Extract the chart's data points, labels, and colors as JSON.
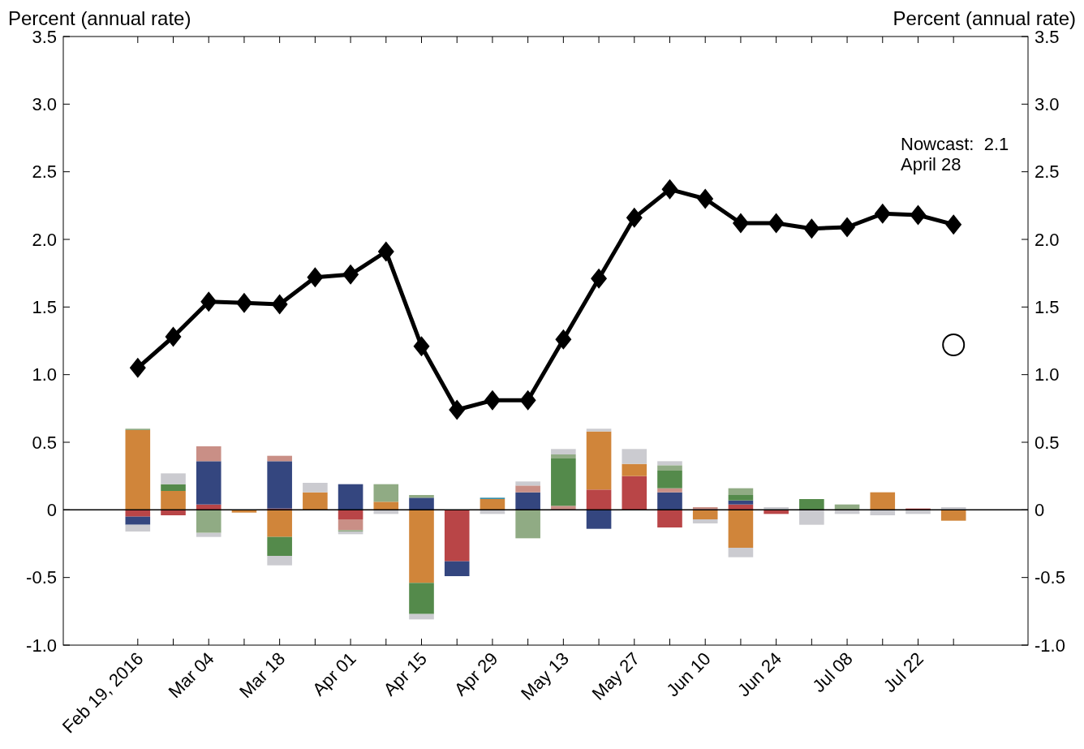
{
  "chart_data": {
    "type": "bar",
    "stacked": true,
    "ylabel": "Percent (annual rate)",
    "y2label": "Percent (annual rate)",
    "categories": [
      "Feb 19, 2016",
      null,
      "Mar 04",
      null,
      "Mar 18",
      null,
      "Apr 01",
      null,
      "Apr 15",
      null,
      "Apr 29",
      null,
      "May 13",
      null,
      "May 27",
      null,
      "Jun 10",
      null,
      "Jun 24",
      null,
      "Jul 08",
      null,
      "Jul 22",
      null
    ],
    "ylim": [
      -1,
      3.5
    ],
    "yticks": [
      {
        "value": -1,
        "label": "-1.0"
      },
      -0.5,
      0,
      0.5,
      {
        "value": 1,
        "label": "1.0"
      },
      1.5,
      {
        "value": 2,
        "label": "2.0"
      },
      2.5,
      {
        "value": 3,
        "label": "3.0"
      },
      3.5
    ],
    "y2lim": [
      -1,
      3.5
    ],
    "y2ticks": [
      {
        "value": -1,
        "label": "-1.0"
      },
      -0.5,
      0,
      0.5,
      {
        "value": 1,
        "label": "1.0"
      },
      1.5,
      {
        "value": 2,
        "label": "2.0"
      },
      2.5,
      {
        "value": 3,
        "label": "3.0"
      },
      3.5
    ],
    "ref_lines": [
      {
        "axis": "y",
        "value": 0,
        "color": "#000000"
      }
    ],
    "annotations": [
      "Nowcast:  2.1",
      "April 28"
    ],
    "series": [
      {
        "color": "#b94547",
        "values": [
          -0.05,
          -0.04,
          0.04,
          null,
          0.01,
          null,
          -0.07,
          null,
          null,
          -0.38,
          null,
          null,
          null,
          0.15,
          0.25,
          -0.13,
          null,
          0.04,
          -0.03,
          null,
          null,
          null,
          0.01,
          null
        ]
      },
      {
        "color": "#d0853a",
        "values": [
          0.59,
          0.14,
          null,
          -0.02,
          -0.2,
          0.13,
          null,
          0.06,
          -0.54,
          null,
          0.08,
          null,
          null,
          0.43,
          0.09,
          null,
          -0.07,
          -0.28,
          null,
          null,
          null,
          0.13,
          null,
          -0.08
        ]
      },
      {
        "color": "#34467f",
        "values": [
          -0.06,
          null,
          0.32,
          null,
          0.35,
          null,
          0.19,
          null,
          0.09,
          -0.11,
          null,
          0.13,
          null,
          -0.14,
          null,
          0.13,
          null,
          0.03,
          null,
          null,
          null,
          null,
          null,
          null
        ]
      },
      {
        "color": "#c98f86",
        "values": [
          null,
          null,
          0.11,
          null,
          0.04,
          null,
          -0.08,
          null,
          null,
          null,
          null,
          0.05,
          0.03,
          null,
          null,
          0.03,
          0.02,
          null,
          null,
          null,
          null,
          null,
          null,
          null
        ]
      },
      {
        "color": "#548a4b",
        "values": [
          null,
          0.05,
          null,
          null,
          -0.14,
          null,
          null,
          null,
          -0.23,
          null,
          null,
          null,
          0.35,
          null,
          null,
          0.13,
          null,
          0.04,
          null,
          0.08,
          null,
          null,
          null,
          null
        ]
      },
      {
        "color": "#90ab84",
        "values": [
          0.01,
          null,
          -0.17,
          null,
          null,
          null,
          -0.01,
          0.13,
          0.02,
          null,
          null,
          -0.21,
          0.03,
          null,
          null,
          0.04,
          null,
          0.05,
          null,
          null,
          0.04,
          null,
          null,
          null
        ]
      },
      {
        "color": "#3a8fa8",
        "values": [
          null,
          null,
          null,
          null,
          null,
          null,
          null,
          null,
          null,
          null,
          0.01,
          null,
          null,
          null,
          null,
          null,
          null,
          null,
          null,
          null,
          null,
          null,
          null,
          null
        ]
      },
      {
        "color": "#cbcbd0",
        "values": [
          -0.05,
          0.08,
          -0.03,
          null,
          -0.07,
          0.07,
          -0.02,
          -0.03,
          -0.04,
          null,
          -0.03,
          0.03,
          0.04,
          0.02,
          0.11,
          0.03,
          -0.03,
          -0.07,
          0.02,
          -0.11,
          -0.03,
          -0.04,
          -0.03,
          0.02
        ]
      },
      {
        "type": "line",
        "color": "#000000",
        "marker": "diamond",
        "line_style": "solid",
        "values": [
          1.05,
          1.28,
          1.54,
          1.53,
          1.52,
          1.72,
          1.74,
          1.91,
          1.21,
          0.74,
          0.81,
          0.81,
          1.26,
          1.71,
          2.16,
          2.37,
          2.3,
          2.12,
          2.12,
          2.08,
          2.09,
          2.19,
          2.18,
          2.11
        ]
      },
      {
        "type": "scatter",
        "color": "#000000",
        "marker": "circle",
        "values": [
          null,
          null,
          null,
          null,
          null,
          null,
          null,
          null,
          null,
          null,
          null,
          null,
          null,
          null,
          null,
          null,
          null,
          null,
          null,
          null,
          null,
          null,
          null,
          1.22
        ]
      }
    ]
  }
}
